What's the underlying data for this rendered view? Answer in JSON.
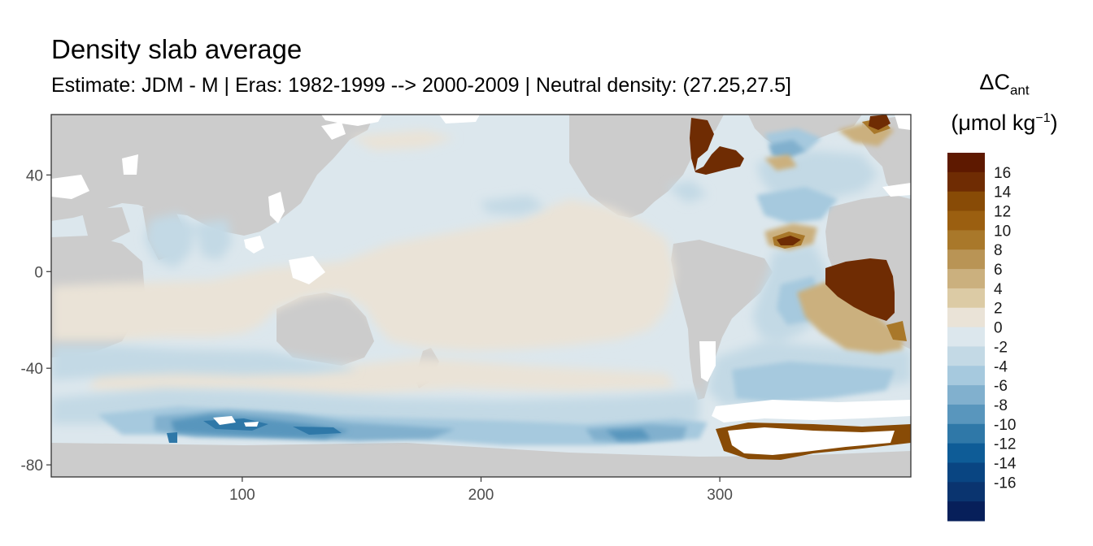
{
  "title": "Density slab average",
  "subtitle": "Estimate: JDM - M | Eras: 1982-1999 --> 2000-2009 | Neutral density: (27.25,27.5]",
  "legend": {
    "title_symbol": "ΔC",
    "title_subscript": "ant",
    "unit_prefix": "(μmol kg",
    "unit_superscript": "−1",
    "unit_suffix": ")",
    "labels": [
      "16",
      "14",
      "12",
      "10",
      "8",
      "6",
      "4",
      "2",
      "0",
      "-2",
      "-4",
      "-6",
      "-8",
      "-10",
      "-12",
      "-14",
      "-16"
    ],
    "colors": [
      "#5e1900",
      "#6f2c03",
      "#884b06",
      "#9b5f10",
      "#a9782a",
      "#b99455",
      "#cbb07e",
      "#dccba5",
      "#eae3d7",
      "#dce7ed",
      "#c3d9e5",
      "#a6c9de",
      "#81b0ce",
      "#5996bd",
      "#2f78a8",
      "#0e5c97",
      "#094582",
      "#0a346f",
      "#071f5a"
    ]
  },
  "chart_data": {
    "type": "heatmap",
    "title": "Density slab average",
    "subtitle": "Estimate: JDM - M | Eras: 1982-1999 --> 2000-2009 | Neutral density: (27.25,27.5]",
    "x_ticks": [
      "100",
      "200",
      "300"
    ],
    "x_tick_values": [
      100,
      200,
      300
    ],
    "y_ticks": [
      "40",
      "0",
      "-40",
      "-80"
    ],
    "y_tick_values": [
      40,
      0,
      -40,
      -80
    ],
    "xlim": [
      20,
      380
    ],
    "ylim": [
      -85,
      65
    ],
    "land_color": "#cccccc",
    "missing_color": "#ffffff",
    "color_breaks": [
      -18,
      -16,
      -14,
      -12,
      -10,
      -8,
      -6,
      -4,
      -2,
      0,
      2,
      4,
      6,
      8,
      10,
      12,
      14,
      16,
      18
    ],
    "grid": false
  }
}
